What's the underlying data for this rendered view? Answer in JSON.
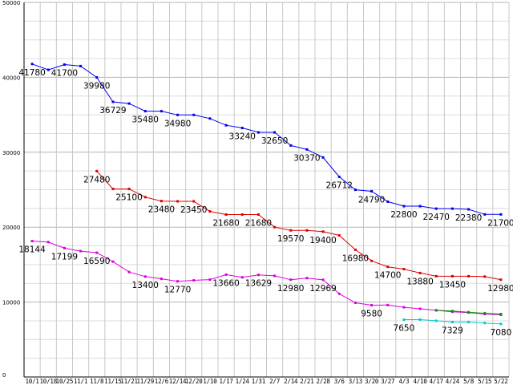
{
  "chart_data": {
    "type": "line",
    "title": "",
    "xlabel": "",
    "ylabel": "",
    "ylim": [
      0,
      50000
    ],
    "grid": true,
    "y_ticks": [
      "0",
      "10000",
      "20000",
      "30000",
      "40000",
      "50000"
    ],
    "categories": [
      "10/1",
      "10/18",
      "10/25",
      "11/1",
      "11/8",
      "11/15",
      "11/21",
      "11/29",
      "12/6",
      "12/14",
      "12/20",
      "1/10",
      "1/17",
      "1/24",
      "1/31",
      "2/7",
      "2/14",
      "2/21",
      "2/28",
      "3/6",
      "3/13",
      "3/20",
      "3/27",
      "4/3",
      "4/10",
      "4/17",
      "4/24",
      "5/8",
      "5/15",
      "5/22"
    ],
    "x_tick_labels": [
      "10/1",
      "10/18",
      "10/25",
      "11/1",
      "11/8",
      "11/15",
      "11/21",
      "11/29",
      "12/6",
      "12/14",
      "12/20",
      "1/10",
      "1/17",
      "1/24",
      "1/31",
      "2/7",
      "2/14",
      "2/21",
      "2/28",
      "3/6",
      "3/13",
      "3/20",
      "3/27",
      "4/3",
      "4/10",
      "4/17",
      "4/24",
      "5/8",
      "5/15",
      "5/22"
    ],
    "series": [
      {
        "name": "blue",
        "color": "#0000ee",
        "values": [
          41780,
          41000,
          41700,
          41500,
          39980,
          36729,
          36500,
          35480,
          35480,
          34980,
          34980,
          34500,
          33600,
          33240,
          32650,
          32650,
          30900,
          30370,
          29300,
          26712,
          24990,
          24790,
          23400,
          22800,
          22800,
          22470,
          22470,
          22380,
          21700,
          21700
        ],
        "labels": [
          {
            "index": 0,
            "text": "41780"
          },
          {
            "index": 2,
            "text": "41700"
          },
          {
            "index": 4,
            "text": "39980"
          },
          {
            "index": 5,
            "text": "36729"
          },
          {
            "index": 7,
            "text": "35480"
          },
          {
            "index": 9,
            "text": "34980"
          },
          {
            "index": 13,
            "text": "33240"
          },
          {
            "index": 15,
            "text": "32650"
          },
          {
            "index": 17,
            "text": "30370"
          },
          {
            "index": 19,
            "text": "26712"
          },
          {
            "index": 21,
            "text": "24790"
          },
          {
            "index": 23,
            "text": "22800"
          },
          {
            "index": 25,
            "text": "22470"
          },
          {
            "index": 27,
            "text": "22380"
          },
          {
            "index": 29,
            "text": "21700"
          }
        ]
      },
      {
        "name": "red",
        "color": "#dd0000",
        "values": [
          null,
          null,
          null,
          null,
          27480,
          25100,
          25100,
          24000,
          23480,
          23450,
          23450,
          22100,
          21680,
          21680,
          21680,
          20000,
          19570,
          19570,
          19400,
          18900,
          16980,
          15500,
          14700,
          14400,
          13880,
          13450,
          13450,
          13450,
          13400,
          12980
        ],
        "labels": [
          {
            "index": 4,
            "text": "27480"
          },
          {
            "index": 6,
            "text": "25100"
          },
          {
            "index": 8,
            "text": "23480"
          },
          {
            "index": 10,
            "text": "23450"
          },
          {
            "index": 12,
            "text": "21680"
          },
          {
            "index": 14,
            "text": "21680"
          },
          {
            "index": 16,
            "text": "19570"
          },
          {
            "index": 18,
            "text": "19400"
          },
          {
            "index": 20,
            "text": "16980"
          },
          {
            "index": 22,
            "text": "14700"
          },
          {
            "index": 24,
            "text": "13880"
          },
          {
            "index": 26,
            "text": "13450"
          },
          {
            "index": 29,
            "text": "12980"
          }
        ]
      },
      {
        "name": "magenta",
        "color": "#dd00dd",
        "values": [
          18144,
          18000,
          17199,
          16800,
          16590,
          15400,
          14000,
          13400,
          13100,
          12770,
          12900,
          13000,
          13660,
          13300,
          13629,
          13500,
          12980,
          13200,
          12969,
          11100,
          9900,
          9580,
          9600,
          9300,
          9100,
          8900,
          8700,
          8600,
          8400,
          8300
        ],
        "labels": [
          {
            "index": 0,
            "text": "18144"
          },
          {
            "index": 2,
            "text": "17199"
          },
          {
            "index": 4,
            "text": "16590"
          },
          {
            "index": 7,
            "text": "13400"
          },
          {
            "index": 9,
            "text": "12770"
          },
          {
            "index": 12,
            "text": "13660"
          },
          {
            "index": 14,
            "text": "13629"
          },
          {
            "index": 16,
            "text": "12980"
          },
          {
            "index": 18,
            "text": "12969"
          },
          {
            "index": 21,
            "text": "9580"
          }
        ]
      },
      {
        "name": "green",
        "color": "#009900",
        "values": [
          null,
          null,
          null,
          null,
          null,
          null,
          null,
          null,
          null,
          null,
          null,
          null,
          null,
          null,
          null,
          null,
          null,
          null,
          null,
          null,
          null,
          null,
          null,
          null,
          null,
          8900,
          8800,
          8650,
          8500,
          8400
        ],
        "labels": []
      },
      {
        "name": "cyan",
        "color": "#00cccc",
        "values": [
          null,
          null,
          null,
          null,
          null,
          null,
          null,
          null,
          null,
          null,
          null,
          null,
          null,
          null,
          null,
          null,
          null,
          null,
          null,
          null,
          null,
          null,
          null,
          7650,
          7650,
          7500,
          7329,
          7329,
          7200,
          7080
        ],
        "labels": [
          {
            "index": 23,
            "text": "7650"
          },
          {
            "index": 26,
            "text": "7329"
          },
          {
            "index": 29,
            "text": "7080"
          }
        ]
      }
    ]
  }
}
